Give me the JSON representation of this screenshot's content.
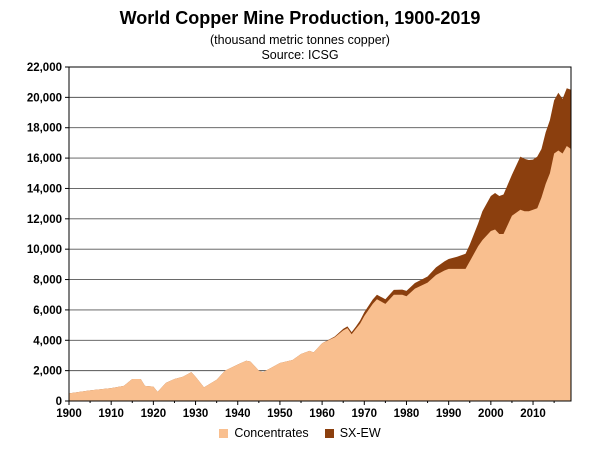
{
  "chart_data": {
    "type": "area",
    "title": "World Copper Mine Production, 1900-2019",
    "subtitle": "(thousand metric tonnes copper)",
    "source": "Source: ICSG",
    "xlabel": "",
    "ylabel": "",
    "xlim": [
      1900,
      2019
    ],
    "ylim": [
      0,
      22000
    ],
    "grid": "horizontal",
    "legend_position": "bottom",
    "x_ticks": [
      "1900",
      "1910",
      "1920",
      "1930",
      "1940",
      "1950",
      "1960",
      "1970",
      "1980",
      "1990",
      "2000",
      "2010"
    ],
    "y_ticks": [
      "0",
      "2,000",
      "4,000",
      "6,000",
      "8,000",
      "10,000",
      "12,000",
      "14,000",
      "16,000",
      "18,000",
      "20,000",
      "22,000"
    ],
    "stacked": true,
    "series": [
      {
        "name": "Concentrates",
        "color": "#f9bf8f",
        "points": [
          [
            1900,
            500
          ],
          [
            1905,
            700
          ],
          [
            1910,
            850
          ],
          [
            1913,
            1000
          ],
          [
            1915,
            1450
          ],
          [
            1917,
            1450
          ],
          [
            1918,
            1000
          ],
          [
            1920,
            950
          ],
          [
            1921,
            600
          ],
          [
            1923,
            1200
          ],
          [
            1925,
            1450
          ],
          [
            1927,
            1600
          ],
          [
            1929,
            1900
          ],
          [
            1930,
            1600
          ],
          [
            1932,
            900
          ],
          [
            1935,
            1400
          ],
          [
            1937,
            2000
          ],
          [
            1940,
            2400
          ],
          [
            1942,
            2650
          ],
          [
            1943,
            2600
          ],
          [
            1945,
            2000
          ],
          [
            1946,
            1900
          ],
          [
            1948,
            2200
          ],
          [
            1950,
            2500
          ],
          [
            1953,
            2700
          ],
          [
            1955,
            3100
          ],
          [
            1957,
            3300
          ],
          [
            1958,
            3200
          ],
          [
            1960,
            3800
          ],
          [
            1963,
            4200
          ],
          [
            1965,
            4650
          ],
          [
            1966,
            4800
          ],
          [
            1967,
            4400
          ],
          [
            1969,
            5100
          ],
          [
            1970,
            5600
          ],
          [
            1972,
            6400
          ],
          [
            1973,
            6700
          ],
          [
            1975,
            6400
          ],
          [
            1977,
            7000
          ],
          [
            1979,
            7000
          ],
          [
            1980,
            6900
          ],
          [
            1982,
            7400
          ],
          [
            1985,
            7800
          ],
          [
            1987,
            8300
          ],
          [
            1989,
            8600
          ],
          [
            1990,
            8700
          ],
          [
            1992,
            8700
          ],
          [
            1994,
            8700
          ],
          [
            1995,
            9200
          ],
          [
            1997,
            10200
          ],
          [
            1998,
            10600
          ],
          [
            2000,
            11200
          ],
          [
            2001,
            11300
          ],
          [
            2002,
            11000
          ],
          [
            2003,
            11000
          ],
          [
            2005,
            12200
          ],
          [
            2007,
            12600
          ],
          [
            2008,
            12500
          ],
          [
            2009,
            12500
          ],
          [
            2010,
            12600
          ],
          [
            2011,
            12700
          ],
          [
            2012,
            13400
          ],
          [
            2013,
            14300
          ],
          [
            2014,
            15000
          ],
          [
            2015,
            16300
          ],
          [
            2016,
            16500
          ],
          [
            2017,
            16300
          ],
          [
            2018,
            16800
          ],
          [
            2019,
            16600
          ]
        ]
      },
      {
        "name": "SX-EW",
        "color": "#8b3f0e",
        "points": [
          [
            1900,
            0
          ],
          [
            1960,
            0
          ],
          [
            1963,
            50
          ],
          [
            1965,
            100
          ],
          [
            1968,
            150
          ],
          [
            1970,
            250
          ],
          [
            1973,
            300
          ],
          [
            1975,
            300
          ],
          [
            1980,
            350
          ],
          [
            1985,
            400
          ],
          [
            1990,
            650
          ],
          [
            1992,
            800
          ],
          [
            1994,
            1000
          ],
          [
            1995,
            1100
          ],
          [
            1997,
            1500
          ],
          [
            1998,
            1900
          ],
          [
            2000,
            2300
          ],
          [
            2002,
            2500
          ],
          [
            2003,
            2600
          ],
          [
            2005,
            2700
          ],
          [
            2007,
            3500
          ],
          [
            2008,
            3450
          ],
          [
            2010,
            3300
          ],
          [
            2011,
            3400
          ],
          [
            2012,
            3200
          ],
          [
            2013,
            3400
          ],
          [
            2014,
            3500
          ],
          [
            2015,
            3500
          ],
          [
            2016,
            3800
          ],
          [
            2017,
            3600
          ],
          [
            2018,
            3800
          ],
          [
            2019,
            3900
          ]
        ]
      }
    ]
  },
  "legend": {
    "concentrates_label": "Concentrates",
    "sxew_label": "SX-EW"
  }
}
